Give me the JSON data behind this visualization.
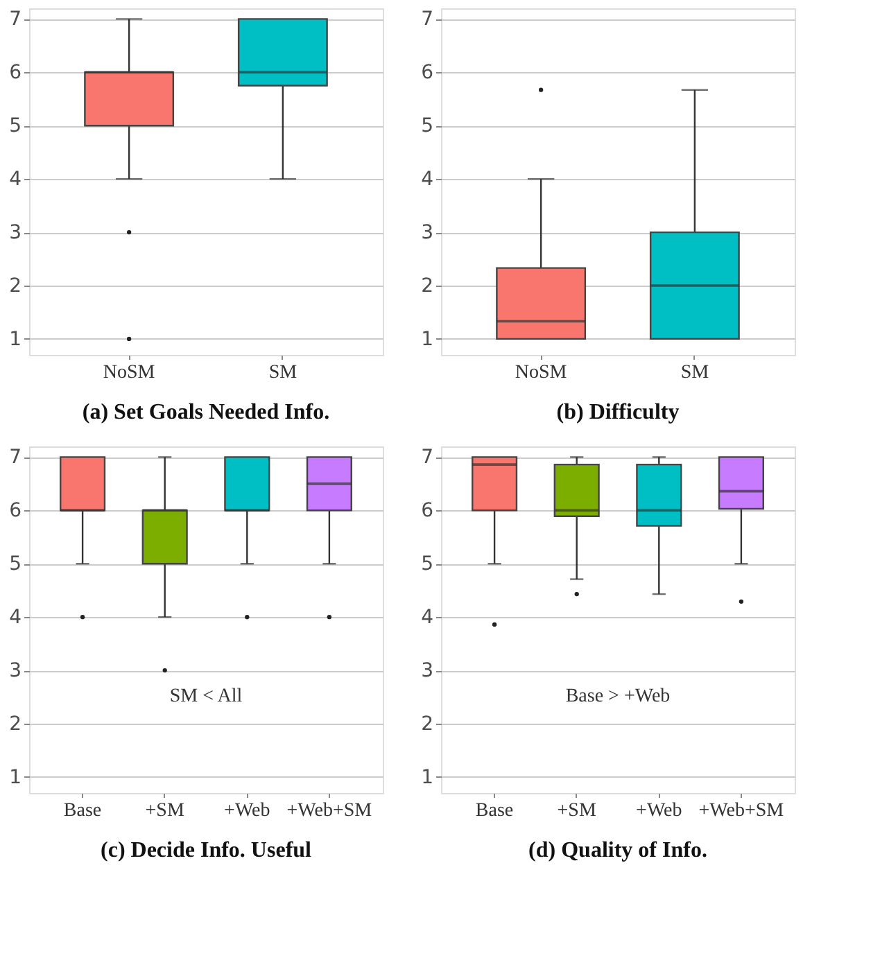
{
  "chart_data": [
    {
      "type": "box",
      "title": "(a) Set Goals Needed Info.",
      "categories": [
        "NoSM",
        "SM"
      ],
      "colors": [
        "#f8766d",
        "#00bfc4"
      ],
      "boxes": [
        {
          "low": 4,
          "q1": 5,
          "median": 6,
          "q3": 6,
          "high": 7,
          "outliers": [
            3,
            1
          ]
        },
        {
          "low": 4,
          "q1": 5.75,
          "median": 6,
          "q3": 7,
          "high": 7
        }
      ],
      "ylim": [
        0.7,
        7.2
      ],
      "yticks": [
        1,
        2,
        3,
        4,
        5,
        6,
        7
      ],
      "grid": "y"
    },
    {
      "type": "box",
      "title": "(b) Difficulty",
      "categories": [
        "NoSM",
        "SM"
      ],
      "colors": [
        "#f8766d",
        "#00bfc4"
      ],
      "boxes": [
        {
          "low": 1,
          "q1": 1,
          "median": 1.33,
          "q3": 2.33,
          "high": 4,
          "outliers": [
            5.67
          ]
        },
        {
          "low": 1,
          "q1": 1,
          "median": 2,
          "q3": 3,
          "high": 5.67
        }
      ],
      "ylim": [
        0.7,
        7.2
      ],
      "yticks": [
        1,
        2,
        3,
        4,
        5,
        6,
        7
      ],
      "grid": "y"
    },
    {
      "type": "box",
      "title": "(c) Decide Info. Useful",
      "categories": [
        "Base",
        "+SM",
        "+Web",
        "+Web+SM"
      ],
      "colors": [
        "#f8766d",
        "#7cae00",
        "#00bfc4",
        "#c77cff"
      ],
      "boxes": [
        {
          "low": 5,
          "q1": 6,
          "median": 6,
          "q3": 7,
          "high": 7,
          "outliers": [
            4
          ]
        },
        {
          "low": 4,
          "q1": 5,
          "median": 6,
          "q3": 6,
          "high": 7,
          "outliers": [
            3
          ]
        },
        {
          "low": 5,
          "q1": 6,
          "median": 6,
          "q3": 7,
          "high": 7,
          "outliers": [
            4
          ]
        },
        {
          "low": 5,
          "q1": 6,
          "median": 6.5,
          "q3": 7,
          "high": 7,
          "outliers": [
            4
          ]
        }
      ],
      "ylim": [
        0.7,
        7.2
      ],
      "yticks": [
        1,
        2,
        3,
        4,
        5,
        6,
        7
      ],
      "grid": "y",
      "annotations": [
        "SM < All"
      ]
    },
    {
      "type": "box",
      "title": "(d) Quality of Info.",
      "categories": [
        "Base",
        "+SM",
        "+Web",
        "+Web+SM"
      ],
      "colors": [
        "#f8766d",
        "#7cae00",
        "#00bfc4",
        "#c77cff"
      ],
      "boxes": [
        {
          "low": 5,
          "q1": 6,
          "median": 6.86,
          "q3": 7,
          "high": 7,
          "outliers": [
            3.86
          ]
        },
        {
          "low": 4.71,
          "q1": 5.89,
          "median": 6,
          "q3": 6.86,
          "high": 7,
          "outliers": [
            4.43
          ]
        },
        {
          "low": 4.43,
          "q1": 5.71,
          "median": 6,
          "q3": 6.86,
          "high": 7
        },
        {
          "low": 5,
          "q1": 6.03,
          "median": 6.36,
          "q3": 7,
          "high": 7,
          "outliers": [
            4.29
          ]
        }
      ],
      "ylim": [
        0.7,
        7.2
      ],
      "yticks": [
        1,
        2,
        3,
        4,
        5,
        6,
        7
      ],
      "grid": "y",
      "annotations": [
        "Base > +Web"
      ]
    }
  ]
}
